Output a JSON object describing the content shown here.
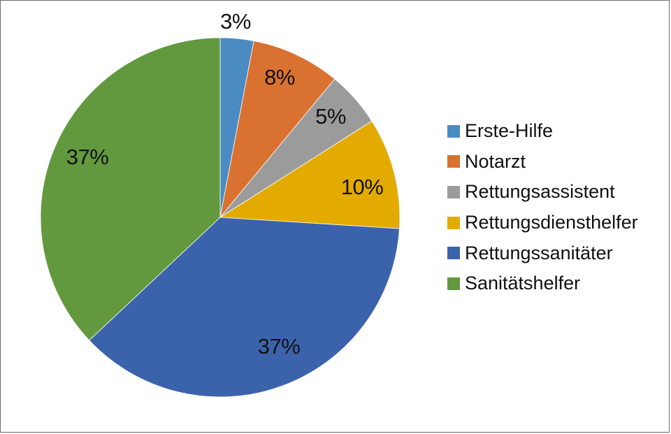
{
  "chart_data": {
    "type": "pie",
    "title": "",
    "categories": [
      "Erste-Hilfe",
      "Notarzt",
      "Rettungsassistent",
      "Rettungsdiensthelfer",
      "Rettungssanitäter",
      "Sanitätshelfer"
    ],
    "values": [
      3,
      8,
      5,
      10,
      37,
      37
    ],
    "labels": [
      "3%",
      "8%",
      "5%",
      "10%",
      "37%",
      "37%"
    ],
    "colors": [
      "#4a8bc4",
      "#d97230",
      "#9b9b9b",
      "#e3ab00",
      "#3b63ab",
      "#62993e"
    ],
    "start_angle": "12 o'clock",
    "direction": "clockwise",
    "legend_position": "right"
  },
  "legend": {
    "items": [
      {
        "label": "Erste-Hilfe",
        "color": "#4a8bc4"
      },
      {
        "label": "Notarzt",
        "color": "#d97230"
      },
      {
        "label": "Rettungsassistent",
        "color": "#9b9b9b"
      },
      {
        "label": "Rettungsdiensthelfer",
        "color": "#e3ab00"
      },
      {
        "label": "Rettungssanitäter",
        "color": "#3b63ab"
      },
      {
        "label": "Sanitätshelfer",
        "color": "#62993e"
      }
    ]
  },
  "slice_labels": [
    "3%",
    "8%",
    "5%",
    "10%",
    "37%",
    "37%"
  ]
}
